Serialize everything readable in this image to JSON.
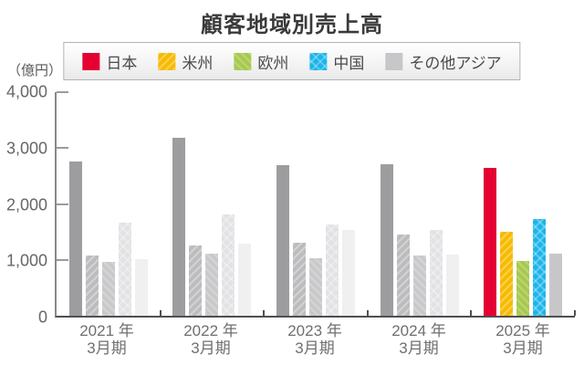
{
  "title": "顧客地域別売上高",
  "y_axis": {
    "unit": "（億円）",
    "tick_labels": [
      "4,000",
      "3,000",
      "2,000",
      "1,000",
      "0"
    ]
  },
  "x_axis": {
    "categories": [
      {
        "year": "2021 年",
        "term": "3月期"
      },
      {
        "year": "2022 年",
        "term": "3月期"
      },
      {
        "year": "2023 年",
        "term": "3月期"
      },
      {
        "year": "2024 年",
        "term": "3月期"
      },
      {
        "year": "2025 年",
        "term": "3月期"
      }
    ]
  },
  "chart_data": {
    "type": "bar",
    "title": "顧客地域別売上高",
    "ylabel": "億円",
    "ylim": [
      0,
      4000
    ],
    "grid": false,
    "legend_position": "top",
    "categories": [
      "2021年3月期",
      "2022年3月期",
      "2023年3月期",
      "2024年3月期",
      "2025年3月期"
    ],
    "highlight_category_index": 4,
    "series": [
      {
        "name": "日本",
        "color": "#e50033",
        "past_color": "#9d9da0",
        "pattern": "solid",
        "values": [
          2760,
          3180,
          2690,
          2710,
          2640
        ]
      },
      {
        "name": "米州",
        "color": "#f7ba00",
        "past_color": "#bcbcbe",
        "pattern": "diagonal-stripe",
        "values": [
          1080,
          1250,
          1310,
          1450,
          1500
        ]
      },
      {
        "name": "欧州",
        "color": "#a8c94e",
        "past_color": "#c9c9cb",
        "pattern": "diagonal-stripe-light",
        "values": [
          960,
          1110,
          1030,
          1080,
          980
        ]
      },
      {
        "name": "中国",
        "color": "#1ab5ea",
        "past_color": "#e2e2e4",
        "pattern": "crosshatch",
        "values": [
          1660,
          1810,
          1630,
          1540,
          1730
        ]
      },
      {
        "name": "その他アジア",
        "color": "#c7c7c9",
        "past_color": "#f0f0f1",
        "pattern": "solid",
        "values": [
          1020,
          1290,
          1530,
          1100,
          1110
        ]
      }
    ]
  }
}
